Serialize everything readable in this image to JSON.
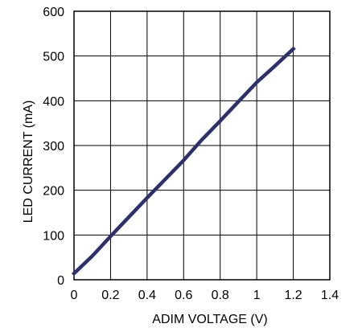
{
  "chart_data": {
    "type": "line",
    "title": "",
    "xlabel": "ADIM VOLTAGE (V)",
    "ylabel": "LED CURRENT (mA)",
    "xlim": [
      0,
      1.4
    ],
    "ylim": [
      0,
      600
    ],
    "x_ticks": [
      "0",
      "0.2",
      "0.4",
      "0.6",
      "0.8",
      "1",
      "1.2",
      "1.4"
    ],
    "y_ticks": [
      "0",
      "100",
      "200",
      "300",
      "400",
      "500",
      "600"
    ],
    "grid": true,
    "series": [
      {
        "color": "#2e3169",
        "x": [
          0.0,
          0.1,
          0.2,
          0.3,
          0.4,
          0.5,
          0.6,
          0.7,
          0.8,
          0.9,
          1.0,
          1.1,
          1.2
        ],
        "y": [
          14,
          53,
          97,
          140,
          183,
          225,
          267,
          313,
          355,
          398,
          441,
          478,
          516
        ]
      }
    ]
  }
}
